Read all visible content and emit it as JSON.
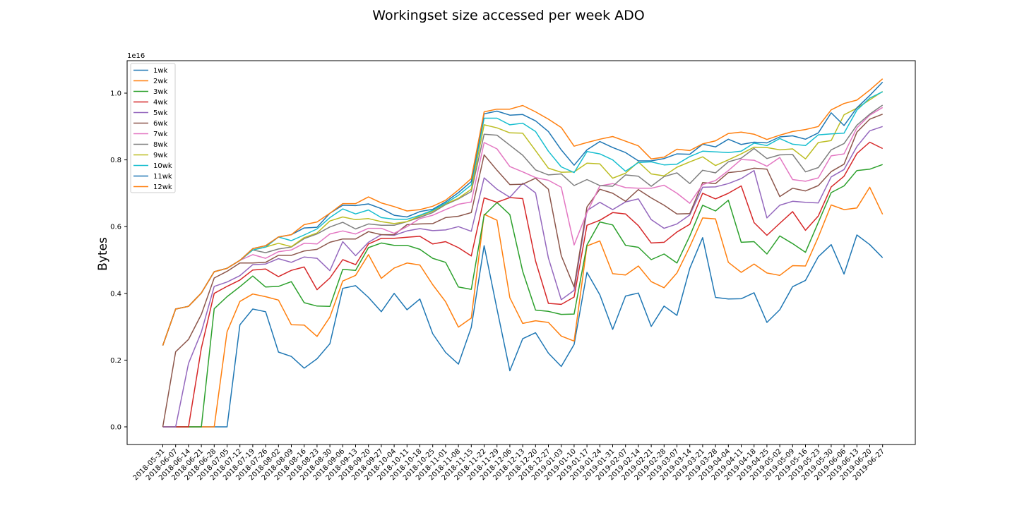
{
  "chart_data": {
    "type": "line",
    "title": "Workingset size accessed per week ADO",
    "xlabel": "",
    "ylabel": "Bytes",
    "y_exponent_label": "1e16",
    "ylim": [
      -0.05,
      1.1
    ],
    "yticks": [
      0.0,
      0.2,
      0.4,
      0.6,
      0.8,
      1.0
    ],
    "ytick_labels": [
      "0.0",
      "0.2",
      "0.4",
      "0.6",
      "0.8",
      "1.0"
    ],
    "legend_position": "upper-left",
    "grid": false,
    "x": [
      "2018-05-31",
      "2018-06-07",
      "2018-06-14",
      "2018-06-21",
      "2018-06-28",
      "2018-07-05",
      "2018-07-12",
      "2018-07-19",
      "2018-07-26",
      "2018-08-02",
      "2018-08-09",
      "2018-08-16",
      "2018-08-23",
      "2018-08-30",
      "2018-09-06",
      "2018-09-13",
      "2018-09-20",
      "2018-09-27",
      "2018-10-04",
      "2018-10-11",
      "2018-10-18",
      "2018-10-25",
      "2018-11-01",
      "2018-11-08",
      "2018-11-15",
      "2018-11-22",
      "2018-11-29",
      "2018-12-06",
      "2018-12-13",
      "2018-12-20",
      "2018-12-27",
      "2019-01-03",
      "2019-01-10",
      "2019-01-17",
      "2019-01-24",
      "2019-01-31",
      "2019-02-07",
      "2019-02-14",
      "2019-02-21",
      "2019-02-28",
      "2019-03-07",
      "2019-03-14",
      "2019-03-21",
      "2019-03-28",
      "2019-04-04",
      "2019-04-11",
      "2019-04-18",
      "2019-04-25",
      "2019-05-02",
      "2019-05-09",
      "2019-05-16",
      "2019-05-23",
      "2019-05-30",
      "2019-06-06",
      "2019-06-13",
      "2019-06-20",
      "2019-06-27"
    ],
    "series": [
      {
        "name": "1wk",
        "color": "#1f77b4",
        "values": [
          0,
          0,
          0,
          0,
          0,
          0,
          0.306,
          0.353,
          0.345,
          0.224,
          0.211,
          0.176,
          0.204,
          0.249,
          0.415,
          0.423,
          0.388,
          0.345,
          0.4,
          0.351,
          0.383,
          0.279,
          0.223,
          0.188,
          0.298,
          0.543,
          0.353,
          0.168,
          0.264,
          0.282,
          0.221,
          0.181,
          0.247,
          0.463,
          0.396,
          0.292,
          0.392,
          0.401,
          0.301,
          0.362,
          0.334,
          0.475,
          0.567,
          0.388,
          0.383,
          0.384,
          0.402,
          0.313,
          0.351,
          0.42,
          0.439,
          0.51,
          0.546,
          0.458,
          0.575,
          0.546,
          0.507
        ]
      },
      {
        "name": "2wk",
        "color": "#ff7f0e",
        "values": [
          0,
          0,
          0,
          0,
          0,
          0.285,
          0.376,
          0.398,
          0.39,
          0.38,
          0.306,
          0.305,
          0.271,
          0.329,
          0.437,
          0.454,
          0.516,
          0.445,
          0.476,
          0.491,
          0.485,
          0.426,
          0.375,
          0.299,
          0.326,
          0.637,
          0.619,
          0.387,
          0.31,
          0.318,
          0.313,
          0.272,
          0.257,
          0.542,
          0.557,
          0.459,
          0.455,
          0.482,
          0.435,
          0.417,
          0.461,
          0.54,
          0.626,
          0.623,
          0.493,
          0.463,
          0.488,
          0.461,
          0.454,
          0.483,
          0.482,
          0.569,
          0.665,
          0.651,
          0.656,
          0.718,
          0.637
        ]
      },
      {
        "name": "3wk",
        "color": "#2ca02c",
        "values": [
          0,
          0,
          0,
          0,
          0.354,
          0.39,
          0.42,
          0.452,
          0.419,
          0.421,
          0.435,
          0.372,
          0.362,
          0.361,
          0.472,
          0.469,
          0.537,
          0.551,
          0.544,
          0.544,
          0.532,
          0.505,
          0.493,
          0.419,
          0.412,
          0.634,
          0.672,
          0.636,
          0.466,
          0.35,
          0.346,
          0.337,
          0.338,
          0.545,
          0.614,
          0.605,
          0.544,
          0.538,
          0.501,
          0.518,
          0.491,
          0.572,
          0.664,
          0.647,
          0.679,
          0.553,
          0.555,
          0.518,
          0.572,
          0.549,
          0.523,
          0.613,
          0.702,
          0.722,
          0.768,
          0.772,
          0.786
        ]
      },
      {
        "name": "4wk",
        "color": "#d62728",
        "values": [
          0,
          0,
          0,
          0.236,
          0.4,
          0.421,
          0.44,
          0.47,
          0.473,
          0.45,
          0.469,
          0.479,
          0.411,
          0.446,
          0.501,
          0.486,
          0.548,
          0.565,
          0.565,
          0.568,
          0.571,
          0.548,
          0.555,
          0.537,
          0.512,
          0.686,
          0.673,
          0.687,
          0.684,
          0.497,
          0.37,
          0.367,
          0.389,
          0.604,
          0.619,
          0.642,
          0.638,
          0.603,
          0.551,
          0.553,
          0.584,
          0.607,
          0.7,
          0.683,
          0.7,
          0.722,
          0.612,
          0.574,
          0.61,
          0.645,
          0.589,
          0.632,
          0.719,
          0.751,
          0.819,
          0.853,
          0.834
        ]
      },
      {
        "name": "5wk",
        "color": "#9467bd",
        "values": [
          0,
          0,
          0.19,
          0.284,
          0.421,
          0.434,
          0.453,
          0.486,
          0.488,
          0.504,
          0.493,
          0.509,
          0.505,
          0.468,
          0.555,
          0.513,
          0.553,
          0.576,
          0.574,
          0.587,
          0.594,
          0.588,
          0.59,
          0.6,
          0.586,
          0.746,
          0.712,
          0.688,
          0.73,
          0.701,
          0.506,
          0.381,
          0.409,
          0.648,
          0.673,
          0.651,
          0.674,
          0.683,
          0.621,
          0.595,
          0.608,
          0.635,
          0.718,
          0.719,
          0.729,
          0.744,
          0.768,
          0.626,
          0.664,
          0.676,
          0.673,
          0.671,
          0.749,
          0.771,
          0.84,
          0.887,
          0.9
        ]
      },
      {
        "name": "6wk",
        "color": "#8c564b",
        "values": [
          0,
          0.225,
          0.262,
          0.337,
          0.446,
          0.466,
          0.491,
          0.491,
          0.493,
          0.514,
          0.514,
          0.527,
          0.532,
          0.553,
          0.563,
          0.563,
          0.585,
          0.576,
          0.576,
          0.606,
          0.608,
          0.609,
          0.627,
          0.631,
          0.642,
          0.815,
          0.769,
          0.726,
          0.727,
          0.745,
          0.712,
          0.513,
          0.419,
          0.659,
          0.712,
          0.7,
          0.676,
          0.711,
          0.686,
          0.664,
          0.638,
          0.639,
          0.732,
          0.729,
          0.762,
          0.766,
          0.775,
          0.772,
          0.69,
          0.715,
          0.707,
          0.723,
          0.765,
          0.787,
          0.883,
          0.922,
          0.937
        ]
      },
      {
        "name": "7wk",
        "color": "#e377c2",
        "values": [
          0.244,
          0.353,
          0.361,
          0.401,
          0.465,
          0.475,
          0.499,
          0.516,
          0.505,
          0.525,
          0.53,
          0.55,
          0.548,
          0.578,
          0.587,
          0.578,
          0.595,
          0.595,
          0.58,
          0.6,
          0.624,
          0.634,
          0.651,
          0.667,
          0.674,
          0.852,
          0.833,
          0.78,
          0.764,
          0.747,
          0.739,
          0.718,
          0.545,
          0.642,
          0.722,
          0.729,
          0.717,
          0.715,
          0.715,
          0.724,
          0.7,
          0.67,
          0.726,
          0.738,
          0.768,
          0.801,
          0.799,
          0.781,
          0.807,
          0.741,
          0.736,
          0.746,
          0.812,
          0.818,
          0.896,
          0.934,
          0.957
        ]
      },
      {
        "name": "8wk",
        "color": "#7f7f7f",
        "values": [
          0.244,
          0.353,
          0.361,
          0.401,
          0.465,
          0.475,
          0.499,
          0.53,
          0.522,
          0.533,
          0.539,
          0.564,
          0.578,
          0.599,
          0.613,
          0.593,
          0.608,
          0.604,
          0.604,
          0.615,
          0.628,
          0.642,
          0.666,
          0.683,
          0.705,
          0.877,
          0.874,
          0.844,
          0.814,
          0.77,
          0.755,
          0.758,
          0.723,
          0.741,
          0.723,
          0.721,
          0.755,
          0.751,
          0.721,
          0.75,
          0.761,
          0.729,
          0.769,
          0.761,
          0.794,
          0.805,
          0.834,
          0.804,
          0.815,
          0.816,
          0.764,
          0.777,
          0.83,
          0.849,
          0.904,
          0.937,
          0.964
        ]
      },
      {
        "name": "9wk",
        "color": "#bcbd22",
        "values": [
          0.244,
          0.353,
          0.361,
          0.401,
          0.465,
          0.475,
          0.499,
          0.53,
          0.539,
          0.55,
          0.54,
          0.567,
          0.581,
          0.617,
          0.629,
          0.621,
          0.624,
          0.615,
          0.609,
          0.615,
          0.632,
          0.646,
          0.668,
          0.685,
          0.712,
          0.905,
          0.896,
          0.881,
          0.88,
          0.828,
          0.775,
          0.763,
          0.764,
          0.79,
          0.788,
          0.745,
          0.76,
          0.794,
          0.758,
          0.752,
          0.778,
          0.794,
          0.809,
          0.783,
          0.8,
          0.818,
          0.838,
          0.837,
          0.83,
          0.833,
          0.803,
          0.852,
          0.858,
          0.935,
          0.955,
          0.98,
          1.005
        ]
      },
      {
        "name": "10wk",
        "color": "#17becf",
        "values": [
          0.244,
          0.353,
          0.361,
          0.401,
          0.465,
          0.475,
          0.499,
          0.53,
          0.539,
          0.569,
          0.558,
          0.575,
          0.593,
          0.627,
          0.653,
          0.638,
          0.65,
          0.627,
          0.622,
          0.622,
          0.634,
          0.649,
          0.67,
          0.694,
          0.725,
          0.925,
          0.925,
          0.905,
          0.91,
          0.885,
          0.826,
          0.779,
          0.762,
          0.825,
          0.818,
          0.8,
          0.766,
          0.792,
          0.794,
          0.785,
          0.787,
          0.81,
          0.826,
          0.824,
          0.822,
          0.826,
          0.85,
          0.843,
          0.864,
          0.847,
          0.843,
          0.875,
          0.878,
          0.88,
          0.949,
          0.985,
          1.004
        ]
      },
      {
        "name": "11wk",
        "color": "#1f77b4",
        "values": [
          0.244,
          0.353,
          0.361,
          0.401,
          0.465,
          0.475,
          0.499,
          0.534,
          0.543,
          0.569,
          0.576,
          0.596,
          0.598,
          0.64,
          0.664,
          0.663,
          0.668,
          0.654,
          0.634,
          0.629,
          0.645,
          0.652,
          0.674,
          0.702,
          0.735,
          0.938,
          0.946,
          0.934,
          0.936,
          0.917,
          0.885,
          0.83,
          0.784,
          0.83,
          0.855,
          0.837,
          0.822,
          0.797,
          0.797,
          0.804,
          0.818,
          0.817,
          0.847,
          0.839,
          0.862,
          0.846,
          0.853,
          0.851,
          0.869,
          0.872,
          0.862,
          0.881,
          0.941,
          0.903,
          0.956,
          0.993,
          1.033
        ]
      },
      {
        "name": "12wk",
        "color": "#ff7f0e",
        "values": [
          0.244,
          0.353,
          0.361,
          0.401,
          0.465,
          0.475,
          0.499,
          0.534,
          0.543,
          0.569,
          0.576,
          0.606,
          0.614,
          0.64,
          0.669,
          0.669,
          0.689,
          0.671,
          0.66,
          0.647,
          0.651,
          0.661,
          0.679,
          0.71,
          0.744,
          0.944,
          0.952,
          0.952,
          0.963,
          0.944,
          0.922,
          0.897,
          0.841,
          0.852,
          0.862,
          0.87,
          0.856,
          0.842,
          0.803,
          0.808,
          0.832,
          0.828,
          0.848,
          0.857,
          0.879,
          0.883,
          0.877,
          0.861,
          0.874,
          0.885,
          0.891,
          0.9,
          0.95,
          0.969,
          0.979,
          1.009,
          1.043
        ]
      }
    ]
  }
}
